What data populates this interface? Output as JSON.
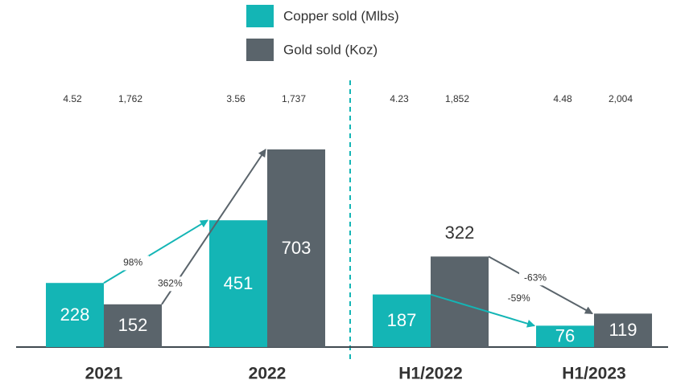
{
  "chart_data": {
    "type": "bar",
    "categories": [
      "2021",
      "2022",
      "H1/2022",
      "H1/2023"
    ],
    "series": [
      {
        "name": "Copper sold (Mlbs)",
        "color": "#14b5b5",
        "values": [
          228,
          451,
          187,
          76
        ],
        "top_labels": [
          "4.52",
          "3.56",
          "4.23",
          "4.48"
        ]
      },
      {
        "name": "Gold sold (Koz)",
        "color": "#5a646b",
        "values": [
          152,
          703,
          322,
          119
        ],
        "top_labels": [
          "1,762",
          "1,737",
          "1,852",
          "2,004"
        ]
      }
    ],
    "annotations": [
      "98%",
      "362%",
      "-59%",
      "-63%"
    ]
  }
}
